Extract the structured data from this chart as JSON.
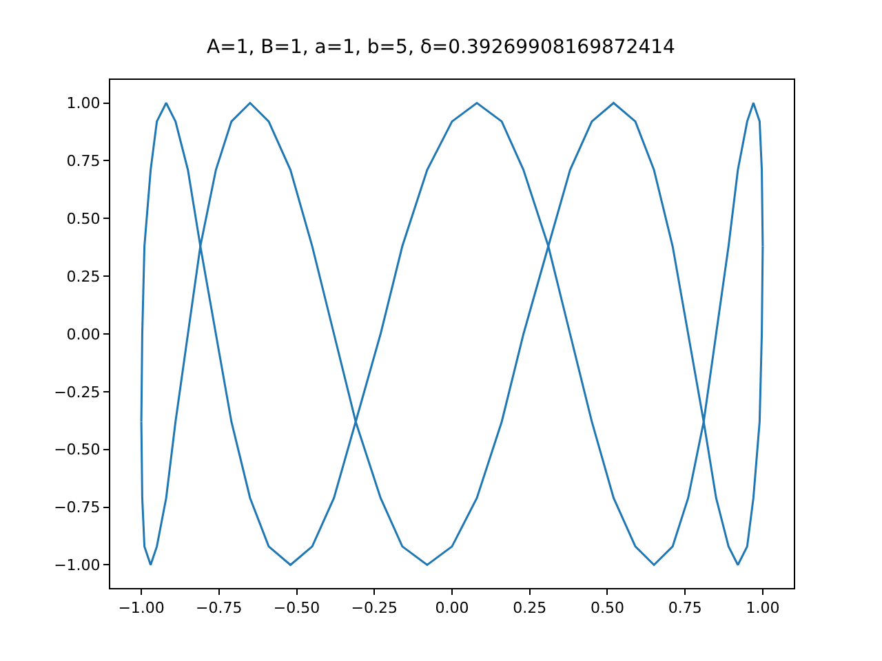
{
  "chart_data": {
    "type": "line",
    "title": "A=1, B=1, a=1, b=5, δ=0.39269908169872414",
    "series": [
      {
        "color": "#1f77b4",
        "x": [
          1,
          0.997,
          0.99,
          0.97,
          0.95,
          0.92,
          0.89,
          0.85,
          0.81,
          0.76,
          0.71,
          0.65,
          0.59,
          0.52,
          0.45,
          0.38,
          0.31,
          0.23,
          0.16,
          0.08,
          0,
          -0.08,
          -0.16,
          -0.23,
          -0.31,
          -0.38,
          -0.45,
          -0.52,
          -0.59,
          -0.65,
          -0.71,
          -0.76,
          -0.81,
          -0.85,
          -0.89,
          -0.92,
          -0.95,
          -0.97,
          -0.99,
          -0.997,
          -1
        ],
        "values": [
          0.38,
          0.71,
          0.92,
          1,
          0.92,
          0.71,
          0.38,
          0,
          -0.38,
          -0.71,
          -0.92,
          -1,
          -0.92,
          -0.71,
          -0.38,
          0,
          0.38,
          0.71,
          0.92,
          1,
          0.92,
          0.71,
          0.38,
          0,
          -0.38,
          -0.71,
          -0.92,
          -1,
          -0.92,
          -0.71,
          -0.38,
          0,
          0.38,
          0.71,
          0.92,
          1,
          0.92,
          0.71,
          0.38,
          0,
          -0.38
        ]
      },
      {
        "color": "#1f77b4",
        "x": [
          -1,
          -0.997,
          -0.99,
          -0.97,
          -0.95,
          -0.92,
          -0.89,
          -0.85,
          -0.81,
          -0.76,
          -0.71,
          -0.65,
          -0.59,
          -0.52,
          -0.45,
          -0.38,
          -0.31,
          -0.23,
          -0.16,
          -0.08,
          0,
          0.08,
          0.16,
          0.23,
          0.31,
          0.38,
          0.45,
          0.52,
          0.59,
          0.65,
          0.71,
          0.76,
          0.81,
          0.85,
          0.89,
          0.92,
          0.95,
          0.97,
          0.99,
          0.997,
          1
        ],
        "values": [
          -0.38,
          -0.71,
          -0.92,
          -1,
          -0.92,
          -0.71,
          -0.38,
          0,
          0.38,
          0.71,
          0.92,
          1,
          0.92,
          0.71,
          0.38,
          0,
          -0.38,
          -0.71,
          -0.92,
          -1,
          -0.92,
          -0.71,
          -0.38,
          0,
          0.38,
          0.71,
          0.92,
          1,
          0.92,
          0.71,
          0.38,
          0,
          -0.38,
          -0.71,
          -0.92,
          -1,
          -0.92,
          -0.71,
          -0.38,
          0,
          0.38
        ]
      }
    ],
    "xlim": [
      -1.1,
      1.1
    ],
    "ylim": [
      -1.1,
      1.1
    ],
    "xticks": [
      {
        "value": -1,
        "label": "−1.00"
      },
      {
        "value": -0.75,
        "label": "−0.75"
      },
      {
        "value": -0.5,
        "label": "−0.50"
      },
      {
        "value": -0.25,
        "label": "−0.25"
      },
      {
        "value": 0,
        "label": "0.00"
      },
      {
        "value": 0.25,
        "label": "0.25"
      },
      {
        "value": 0.5,
        "label": "0.50"
      },
      {
        "value": 0.75,
        "label": "0.75"
      },
      {
        "value": 1,
        "label": "1.00"
      }
    ],
    "yticks": [
      {
        "value": -1,
        "label": "−1.00"
      },
      {
        "value": -0.75,
        "label": "−0.75"
      },
      {
        "value": -0.5,
        "label": "−0.50"
      },
      {
        "value": -0.25,
        "label": "−0.25"
      },
      {
        "value": 0,
        "label": "0.00"
      },
      {
        "value": 0.25,
        "label": "0.25"
      },
      {
        "value": 0.5,
        "label": "0.50"
      },
      {
        "value": 0.75,
        "label": "0.75"
      },
      {
        "value": 1,
        "label": "1.00"
      }
    ],
    "marker": "none",
    "line_style": "solid"
  }
}
